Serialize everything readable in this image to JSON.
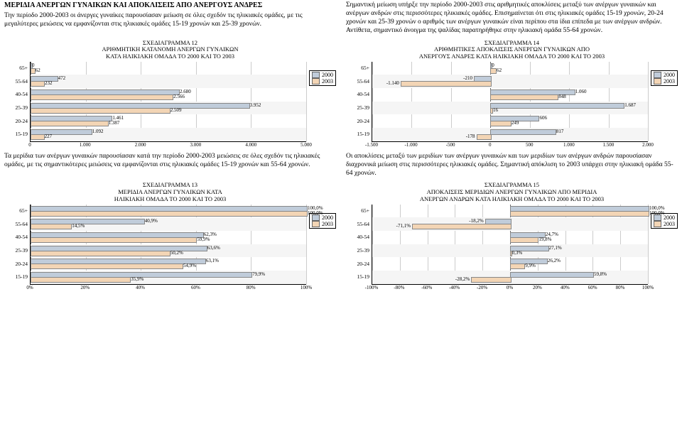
{
  "colors": {
    "s2000": "#c0ccda",
    "s2003": "#f3d5b5",
    "grid": "#cccccc",
    "axis": "#000000",
    "bg": "#ffffff",
    "row_shade": "#f5f5f5"
  },
  "legend_labels": [
    "2000",
    "2003"
  ],
  "top_left": {
    "heading": "ΜΕΡΙΔΙΑ ΑΝΕΡΓΩΝ ΓΥΝΑΙΚΩΝ ΚΑΙ ΑΠΟΚΛΙΣΕΙΣ ΑΠΟ ΑΝΕΡΓΟΥΣ ΑΝΔΡΕΣ",
    "para": "Την περίοδο 2000-2003 οι άνεργες γυναίκες παρουσίασαν μείωση σε όλες σχεδόν τις ηλικιακές ομάδες, με τις μεγαλύτερες μειώσεις να εμφανίζονται στις ηλικιακές ομάδες 15-19 χρονών και 25-39 χρονών."
  },
  "top_right": {
    "para": "Σημαντική μείωση υπήρξε την περίοδο 2000-2003 στις αριθμητικές αποκλίσεις μεταξύ των ανέργων γυναικών και ανέργων ανδρών στις περισσότερες ηλικιακές ομάδες. Επισημαίνεται ότι στις ηλικιακές ομάδες 15-19 χρονών, 20-24 χρονών και 25-39 χρονών ο αριθμός των ανέργων γυναικών είναι περίπου στα ίδια επίπεδα με των ανέργων ανδρών. Αντίθετα, σημαντικό άνοιγμα της ψαλίδας παρατηρήθηκε στην ηλικιακή ομάδα 55-64 χρονών."
  },
  "mid_left": {
    "para": "Τα μερίδια των ανέργων γυναικών παρουσίασαν κατά την περίοδο 2000-2003 μειώσεις σε όλες σχεδόν τις ηλικιακές ομάδες, με τις σημαντικότερες μειώσεις να εμφανίζονται στις ηλικιακές ομάδες 15-19 χρονών και 55-64 χρονών."
  },
  "mid_right": {
    "para": "Οι αποκλίσεις μεταξύ των μεριδίων των ανέργων γυναικών και των μεριδίων των ανέργων ανδρών παρουσίασαν διαχρονικά μείωση στις περισσότερες ηλικιακές ομάδες. Σημαντική απόκλιση το 2003 υπάρχει στην ηλικιακή ομάδα 55-64 χρονών."
  },
  "chart12": {
    "title": "ΣΧΕΔΙΑΓΡΑΜΜΑ 12\nΑΡΙΘΜΗΤΙΚΗ ΚΑΤΑΝΟΜΗ ΑΝΕΡΓΩΝ ΓΥΝΑΙΚΩΝ\nΚΑΤΑ ΗΛΙΚΙΑΚΗ ΟΜΑΔΑ ΤΟ 2000 ΚΑΙ ΤΟ 2003",
    "type": "bar",
    "orientation": "h",
    "categories": [
      "65+",
      "55-64",
      "40-54",
      "25-39",
      "20-24",
      "15-19"
    ],
    "series": [
      {
        "name": "2000",
        "color": "#c0ccda",
        "values": [
          0,
          472,
          2680,
          3952,
          1461,
          1092
        ],
        "labels": [
          "0",
          "472",
          "2.680",
          "3.952",
          "1.461",
          "1.092"
        ]
      },
      {
        "name": "2003",
        "color": "#f3d5b5",
        "values": [
          62,
          232,
          2566,
          2509,
          1387,
          227
        ],
        "labels": [
          "62",
          "232",
          "2.566",
          "2.509",
          "1.387",
          "227"
        ]
      }
    ],
    "xmin": 0,
    "xmax": 5000,
    "xtick_step": 1000,
    "xtick_labels": [
      "0",
      "1.000",
      "2.000",
      "3.000",
      "4.000",
      "5.000"
    ]
  },
  "chart14": {
    "title": "ΣΧΕΔΙΑΓΡΑΜΜΑ 14\nΑΡΙΘΜΗΤΙΚΕΣ ΑΠΟΚΛΙΣΕΙΣ ΑΝΕΡΓΩΝ ΓΥΝΑΙΚΩΝ ΑΠΟ\nΑΝΕΡΓΟΥΣ ΑΝΔΡΕΣ ΚΑΤΑ ΗΛΙΚΙΑΚΗ ΟΜΑΔΑ ΤΟ 2000 ΚΑΙ ΤΟ 2003",
    "type": "bar",
    "orientation": "h",
    "categories": [
      "65+",
      "55-64",
      "40-54",
      "25-39",
      "20-24",
      "15-19"
    ],
    "series": [
      {
        "name": "2000",
        "color": "#c0ccda",
        "values": [
          0,
          -210,
          1060,
          1687,
          606,
          817
        ],
        "labels": [
          "0",
          "-210",
          "1.060",
          "1.687",
          "606",
          "817"
        ]
      },
      {
        "name": "2003",
        "color": "#f3d5b5",
        "values": [
          62,
          -1140,
          848,
          16,
          249,
          -178
        ],
        "labels": [
          "62",
          "-1.140",
          "848",
          "16",
          "249",
          "-178"
        ]
      }
    ],
    "xmin": -1500,
    "xmax": 2000,
    "xtick_step": 500,
    "xtick_labels": [
      "-1.500",
      "-1.000",
      "-500",
      "0",
      "500",
      "1.000",
      "1.500",
      "2.000"
    ]
  },
  "chart13": {
    "title": "ΣΧΕΔΙΑΓΡΑΜΜΑ 13\nΜΕΡΙΔΙΑ ΑΝΕΡΓΩΝ ΓΥΝΑΙΚΩΝ ΚΑΤΑ\nΗΛΙΚΙΑΚΗ ΟΜΑΔΑ ΤΟ 2000 ΚΑΙ ΤΟ 2003",
    "type": "bar",
    "orientation": "h",
    "categories": [
      "65+",
      "55-64",
      "40-54",
      "25-39",
      "20-24",
      "15-19"
    ],
    "series": [
      {
        "name": "2000",
        "color": "#c0ccda",
        "values": [
          100.0,
          40.9,
          62.3,
          63.6,
          63.1,
          79.9
        ],
        "labels": [
          "100,0%",
          "40,9%",
          "62,3%",
          "63,6%",
          "63,1%",
          "79,9%"
        ]
      },
      {
        "name": "2003",
        "color": "#f3d5b5",
        "values": [
          100.0,
          14.5,
          59.9,
          50.2,
          54.9,
          35.9
        ],
        "labels": [
          "100,0%",
          "14,5%",
          "59,9%",
          "50,2%",
          "54,9%",
          "35,9%"
        ]
      }
    ],
    "xmin": 0,
    "xmax": 100,
    "xtick_step": 20,
    "xtick_labels": [
      "0%",
      "20%",
      "40%",
      "60%",
      "80%",
      "100%"
    ]
  },
  "chart15": {
    "title": "ΣΧΕΔΙΑΓΡΑΜΜΑ 15\nΑΠΟΚΛΙΣΕΙΣ ΜΕΡΙΔΙΩΝ ΑΝΕΡΓΩΝ ΓΥΝΑΙΚΩΝ ΑΠΟ ΜΕΡΙΔΙΑ\nΑΝΕΡΓΩΝ ΑΝΔΡΩΝ ΚΑΤΑ ΗΛΙΚΙΑΚΗ ΟΜΑΔΑ ΤΟ 2000 ΚΑΙ ΤΟ 2003",
    "type": "bar",
    "orientation": "h",
    "categories": [
      "65+",
      "55-64",
      "40-54",
      "25-39",
      "20-24",
      "15-19"
    ],
    "series": [
      {
        "name": "2000",
        "color": "#c0ccda",
        "values": [
          100.0,
          -18.2,
          24.7,
          27.1,
          26.2,
          59.8
        ],
        "labels": [
          "100,0%",
          "-18,2%",
          "24,7%",
          "27,1%",
          "26,2%",
          "59,8%"
        ]
      },
      {
        "name": "2003",
        "color": "#f3d5b5",
        "values": [
          100.0,
          -71.1,
          19.8,
          0.3,
          9.9,
          -28.2
        ],
        "labels": [
          "100,0%",
          "-71,1%",
          "19,8%",
          "0,3%",
          "9,9%",
          "-28,2%"
        ]
      }
    ],
    "xmin": -100,
    "xmax": 100,
    "xtick_step": 20,
    "xtick_labels": [
      "-100%",
      "-80%",
      "-60%",
      "-40%",
      "-20%",
      "0%",
      "20%",
      "40%",
      "60%",
      "80%",
      "100%"
    ]
  }
}
